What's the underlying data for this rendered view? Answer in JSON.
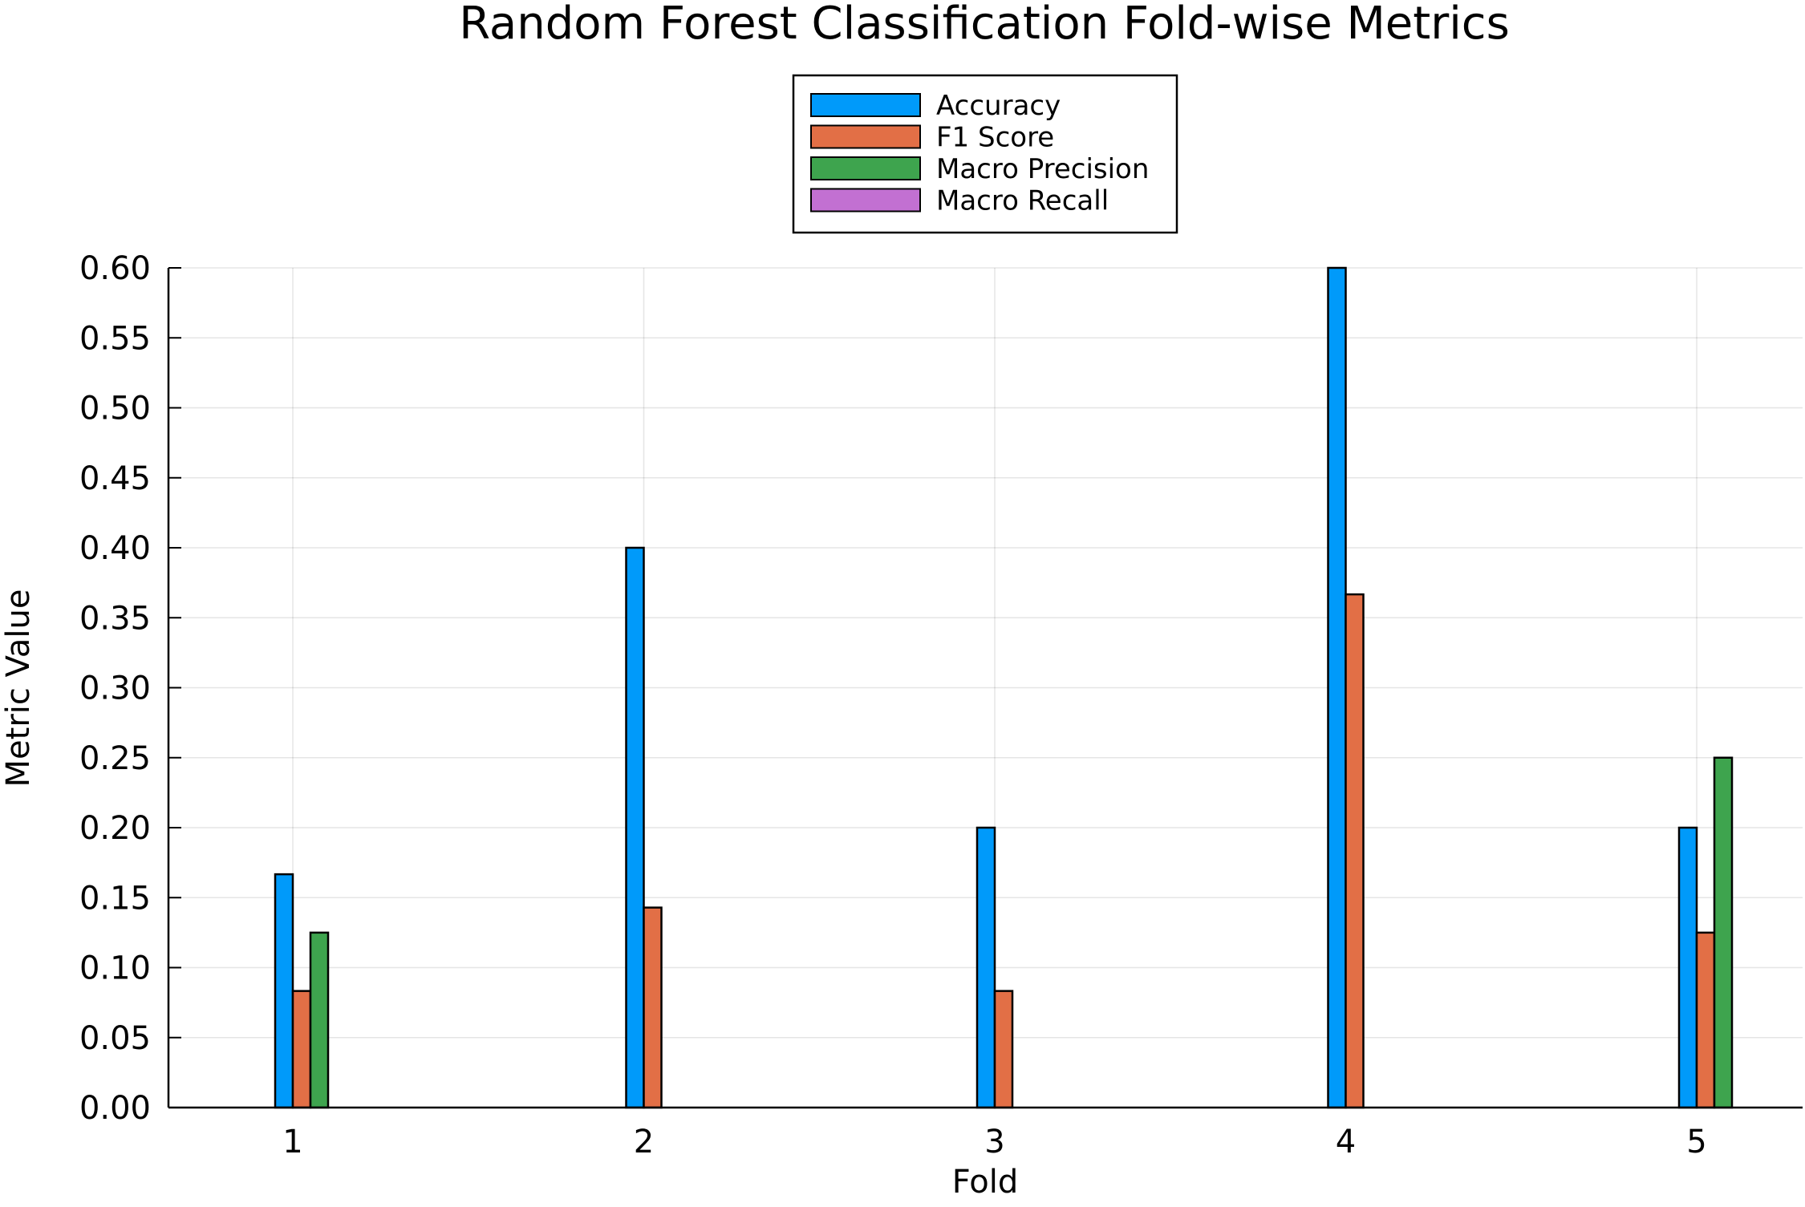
{
  "chart_data": {
    "type": "bar",
    "title": "Random Forest Classification Fold-wise Metrics",
    "xlabel": "Fold",
    "ylabel": "Metric Value",
    "categories": [
      "1",
      "2",
      "3",
      "4",
      "5"
    ],
    "ylim": [
      0,
      0.6
    ],
    "yticks": [
      "0.00",
      "0.05",
      "0.10",
      "0.15",
      "0.20",
      "0.25",
      "0.30",
      "0.35",
      "0.40",
      "0.45",
      "0.50",
      "0.55",
      "0.60"
    ],
    "grid": true,
    "legend_position": "top-center",
    "series": [
      {
        "name": "Accuracy",
        "color": "#009AFA",
        "values": [
          0.1667,
          0.4,
          0.2,
          0.6,
          0.2
        ]
      },
      {
        "name": "F1 Score",
        "color": "#E26F46",
        "values": [
          0.0833,
          0.1429,
          0.0833,
          0.3667,
          0.125
        ]
      },
      {
        "name": "Macro Precision",
        "color": "#3EA44E",
        "values": [
          0.125,
          0.0,
          0.0,
          0.0,
          0.25
        ]
      },
      {
        "name": "Macro Recall",
        "color": "#C270D2",
        "values": [
          0.0,
          0.0,
          0.0,
          0.0,
          0.0
        ]
      }
    ]
  }
}
